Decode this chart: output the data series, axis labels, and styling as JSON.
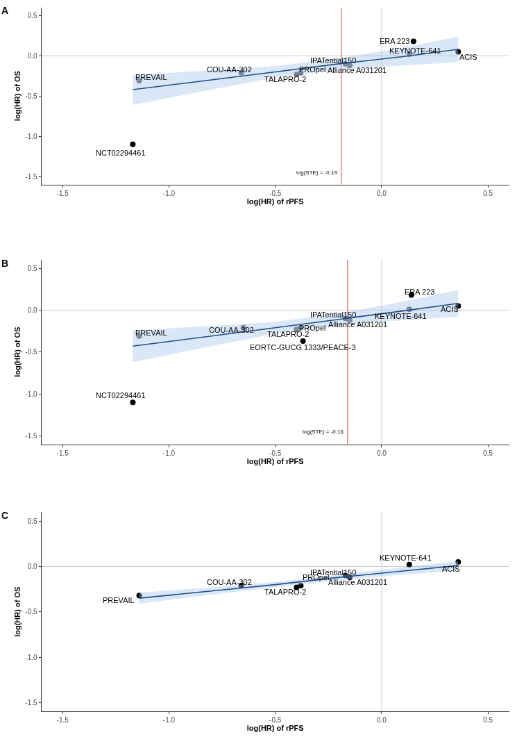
{
  "chart_data": [
    {
      "type": "scatter",
      "title": "A",
      "xlabel": "log(HR) of rPFS",
      "ylabel": "log(HR) of OS",
      "xlim": [
        -1.6,
        0.6
      ],
      "ylim": [
        -1.6,
        0.6
      ],
      "xticks": [
        {
          "value": -1.5,
          "label": "-1.5"
        },
        {
          "value": -1.0,
          "label": "-1.0"
        },
        {
          "value": -0.5,
          "label": "-0.5"
        },
        {
          "value": 0.0,
          "label": "0.0"
        },
        {
          "value": 0.5,
          "label": "0.5"
        }
      ],
      "yticks": [
        {
          "value": -1.5,
          "label": "-1.5"
        },
        {
          "value": -1.0,
          "label": "-1.0"
        },
        {
          "value": -0.5,
          "label": "-0.5"
        },
        {
          "value": 0.0,
          "label": "0.0"
        },
        {
          "value": 0.5,
          "label": "0.5"
        }
      ],
      "grid": false,
      "series": [
        {
          "marker": "circle",
          "x": [
            -1.14,
            -0.66,
            -0.4,
            -0.38,
            -0.17,
            -0.15,
            0.13,
            0.15,
            0.36,
            -1.17
          ],
          "values": [
            -0.31,
            -0.21,
            -0.23,
            -0.21,
            -0.1,
            -0.12,
            0.02,
            0.18,
            0.05,
            -1.1
          ],
          "colors": [
            "#5f6670",
            "#5f6670",
            "#5f6670",
            "#5f6670",
            "#5f6670",
            "#5f6670",
            "#5f6670",
            "#000000",
            "#000000",
            "#000000"
          ]
        },
        {
          "type": "line",
          "color": "#1f4e8c",
          "x": [
            -1.17,
            -0.8,
            -0.5,
            -0.2,
            0.1,
            0.36
          ],
          "values": [
            -0.42,
            -0.3,
            -0.2,
            -0.1,
            -0.01,
            0.08
          ],
          "lower": [
            -0.61,
            -0.42,
            -0.27,
            -0.17,
            -0.12,
            -0.08
          ],
          "upper": [
            -0.24,
            -0.18,
            -0.13,
            -0.03,
            0.1,
            0.24
          ]
        }
      ],
      "ref_lines": [
        {
          "axis": "x",
          "value": 0,
          "color": "#cccccc"
        },
        {
          "axis": "y",
          "value": 0,
          "color": "#cccccc"
        },
        {
          "axis": "x",
          "value": -0.19,
          "color": "#d9413a"
        }
      ],
      "annotations": [
        {
          "text": "PREVAIL",
          "x": -1.14,
          "y": -0.31
        },
        {
          "text": "COU-AA-302",
          "x": -0.66,
          "y": -0.21
        },
        {
          "text": "TALAPRO-2",
          "x": -0.4,
          "y": -0.23
        },
        {
          "text": "PROpel",
          "x": -0.38,
          "y": -0.21
        },
        {
          "text": "IPATential150",
          "x": -0.17,
          "y": -0.1
        },
        {
          "text": "Alliance A031201",
          "x": -0.15,
          "y": -0.12
        },
        {
          "text": "KEYNOTE-641",
          "x": 0.13,
          "y": 0.02
        },
        {
          "text": "ERA 223",
          "x": 0.15,
          "y": 0.18
        },
        {
          "text": "ACIS",
          "x": 0.36,
          "y": 0.05
        },
        {
          "text": "NCT02294461",
          "x": -1.17,
          "y": -1.1
        },
        {
          "text": "log(STE) = -0.19",
          "x": -0.19,
          "y": -1.45
        }
      ]
    },
    {
      "type": "scatter",
      "title": "B",
      "xlabel": "log(HR) of rPFS",
      "ylabel": "log(HR) of OS",
      "xlim": [
        -1.6,
        0.6
      ],
      "ylim": [
        -1.6,
        0.6
      ],
      "xticks": [
        {
          "value": -1.5,
          "label": "-1.5"
        },
        {
          "value": -1.0,
          "label": "-1.0"
        },
        {
          "value": -0.5,
          "label": "-0.5"
        },
        {
          "value": 0.0,
          "label": "0.0"
        },
        {
          "value": 0.5,
          "label": "0.5"
        }
      ],
      "yticks": [
        {
          "value": -1.5,
          "label": "-1.5"
        },
        {
          "value": -1.0,
          "label": "-1.0"
        },
        {
          "value": -0.5,
          "label": "-0.5"
        },
        {
          "value": 0.0,
          "label": "0.0"
        },
        {
          "value": 0.5,
          "label": "0.5"
        }
      ],
      "grid": false,
      "series": [
        {
          "marker": "circle",
          "x": [
            -1.14,
            -0.65,
            -0.4,
            -0.38,
            -0.17,
            -0.15,
            0.13,
            0.14,
            0.36,
            -1.17,
            -0.37
          ],
          "values": [
            -0.31,
            -0.21,
            -0.23,
            -0.21,
            -0.1,
            -0.12,
            0.01,
            0.18,
            0.05,
            -1.1,
            -0.37
          ],
          "colors": [
            "#5f6670",
            "#5f6670",
            "#5f6670",
            "#5f6670",
            "#5f6670",
            "#5f6670",
            "#5f6670",
            "#000000",
            "#000000",
            "#000000",
            "#000000"
          ]
        },
        {
          "type": "line",
          "color": "#1f4e8c",
          "x": [
            -1.17,
            -0.8,
            -0.5,
            -0.2,
            0.1,
            0.36
          ],
          "values": [
            -0.43,
            -0.31,
            -0.21,
            -0.11,
            -0.01,
            0.08
          ],
          "lower": [
            -0.62,
            -0.43,
            -0.28,
            -0.18,
            -0.12,
            -0.08
          ],
          "upper": [
            -0.24,
            -0.19,
            -0.14,
            -0.04,
            0.1,
            0.24
          ]
        }
      ],
      "ref_lines": [
        {
          "axis": "x",
          "value": 0,
          "color": "#cccccc"
        },
        {
          "axis": "y",
          "value": 0,
          "color": "#cccccc"
        },
        {
          "axis": "x",
          "value": -0.16,
          "color": "#d9413a"
        }
      ],
      "annotations": [
        {
          "text": "PREVAIL",
          "x": -1.14,
          "y": -0.31
        },
        {
          "text": "COU-AA-302",
          "x": -0.65,
          "y": -0.21
        },
        {
          "text": "TALAPRO-2",
          "x": -0.4,
          "y": -0.23
        },
        {
          "text": "PROpel",
          "x": -0.38,
          "y": -0.21
        },
        {
          "text": "IPATential150",
          "x": -0.17,
          "y": -0.1
        },
        {
          "text": "Alliance A031201",
          "x": -0.15,
          "y": -0.12
        },
        {
          "text": "KEYNOTE-641",
          "x": 0.13,
          "y": 0.01
        },
        {
          "text": "ERA 223",
          "x": 0.14,
          "y": 0.18
        },
        {
          "text": "ACIS",
          "x": 0.36,
          "y": 0.05
        },
        {
          "text": "NCT02294461",
          "x": -1.17,
          "y": -1.1
        },
        {
          "text": "EORTC-GUCG 1333/PEACE-3",
          "x": -0.37,
          "y": -0.37
        },
        {
          "text": "log(STE) = -0.16",
          "x": -0.16,
          "y": -1.45
        }
      ]
    },
    {
      "type": "scatter",
      "title": "C",
      "xlabel": "log(HR) of rPFS",
      "ylabel": "log(HR) of OS",
      "xlim": [
        -1.6,
        0.6
      ],
      "ylim": [
        -1.6,
        0.6
      ],
      "xticks": [
        {
          "value": -1.5,
          "label": "-1.5"
        },
        {
          "value": -1.0,
          "label": "-1.0"
        },
        {
          "value": -0.5,
          "label": "-0.5"
        },
        {
          "value": 0.0,
          "label": "0.0"
        },
        {
          "value": 0.5,
          "label": "0.5"
        }
      ],
      "yticks": [
        {
          "value": -1.5,
          "label": "-1.5"
        },
        {
          "value": -1.0,
          "label": "-1.0"
        },
        {
          "value": -0.5,
          "label": "-0.5"
        },
        {
          "value": 0.0,
          "label": "0.0"
        },
        {
          "value": 0.5,
          "label": "0.5"
        }
      ],
      "grid": false,
      "series": [
        {
          "marker": "circle",
          "x": [
            -1.14,
            -0.66,
            -0.4,
            -0.38,
            -0.17,
            -0.15,
            0.13,
            0.36
          ],
          "values": [
            -0.32,
            -0.21,
            -0.23,
            -0.21,
            -0.1,
            -0.12,
            0.02,
            0.05
          ],
          "colors": [
            "#000000",
            "#000000",
            "#000000",
            "#000000",
            "#000000",
            "#000000",
            "#000000",
            "#000000"
          ]
        },
        {
          "type": "line",
          "color": "#1f4e8c",
          "x": [
            -1.14,
            -0.8,
            -0.5,
            -0.2,
            0.1,
            0.36
          ],
          "values": [
            -0.35,
            -0.27,
            -0.2,
            -0.12,
            -0.05,
            0.01
          ],
          "lower": [
            -0.41,
            -0.31,
            -0.23,
            -0.15,
            -0.09,
            -0.04
          ],
          "upper": [
            -0.29,
            -0.23,
            -0.17,
            -0.09,
            -0.01,
            0.06
          ]
        }
      ],
      "ref_lines": [
        {
          "axis": "x",
          "value": 0,
          "color": "#cccccc"
        },
        {
          "axis": "y",
          "value": 0,
          "color": "#cccccc"
        }
      ],
      "annotations": [
        {
          "text": "PREVAIL",
          "x": -1.14,
          "y": -0.32
        },
        {
          "text": "COU-AA-302",
          "x": -0.66,
          "y": -0.21
        },
        {
          "text": "TALAPRO-2",
          "x": -0.4,
          "y": -0.23
        },
        {
          "text": "PROpel",
          "x": -0.38,
          "y": -0.21
        },
        {
          "text": "IPATential150",
          "x": -0.17,
          "y": -0.1
        },
        {
          "text": "Alliance A031201",
          "x": -0.15,
          "y": -0.12
        },
        {
          "text": "KEYNOTE-641",
          "x": 0.13,
          "y": 0.02
        },
        {
          "text": "ACIS",
          "x": 0.36,
          "y": 0.05
        }
      ]
    }
  ]
}
